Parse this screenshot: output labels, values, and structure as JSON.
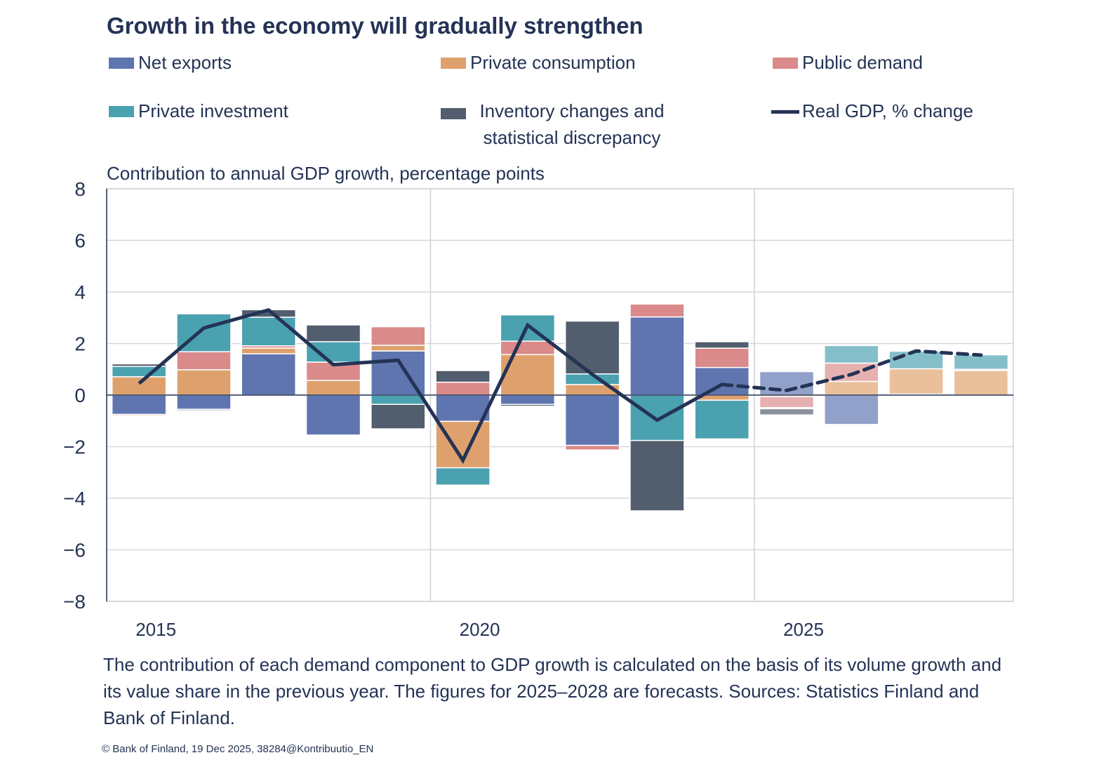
{
  "title": "Growth in the economy will gradually strengthen",
  "legend": [
    {
      "label": "Net exports",
      "color": "#5f75b0",
      "kind": "bar"
    },
    {
      "label": "Private consumption",
      "color": "#dea16d",
      "kind": "bar"
    },
    {
      "label": "Public demand",
      "color": "#da8a8a",
      "kind": "bar"
    },
    {
      "label": "Private investment",
      "color": "#4aa1b0",
      "kind": "bar"
    },
    {
      "label": "Inventory changes and statistical discrepancy",
      "color": "#525d6d",
      "kind": "bar"
    },
    {
      "label": "Real GDP, % change",
      "color": "#243355",
      "kind": "line"
    }
  ],
  "note": "The contribution of each demand component to GDP growth is calculated on the basis of its volume growth and its value share in the previous year. The figures for 2025–2028 are forecasts. Sources: Statistics Finland and Bank of Finland.",
  "copyright": "© Bank of Finland, 19 Dec 2025, 38284@Kontribuutio_EN",
  "chart_data": {
    "type": "bar",
    "stacked": true,
    "title": "Growth in the economy will gradually strengthen",
    "ylabel": "Contribution to annual GDP growth, percentage points",
    "ylim": [
      -8,
      8
    ],
    "yticks": [
      "8",
      "6",
      "4",
      "2",
      "0",
      "−2",
      "−4",
      "−6",
      "−8"
    ],
    "xtick_labels": [
      "2015",
      "2020",
      "2025"
    ],
    "grid": true,
    "legend_position": "top",
    "forecast_from": "2025",
    "categories": [
      "2015",
      "2016",
      "2017",
      "2018",
      "2019",
      "2020",
      "2021",
      "2022",
      "2023",
      "2024",
      "2025",
      "2026",
      "2027",
      "2028"
    ],
    "series": [
      {
        "name": "Net exports",
        "type": "bar",
        "color": "#5f75b0",
        "values": [
          -0.75,
          -0.55,
          1.6,
          -1.55,
          1.71,
          -1.02,
          -0.36,
          -1.95,
          3.03,
          1.07,
          0.91,
          -1.14,
          0.04,
          0.0
        ]
      },
      {
        "name": "Private consumption",
        "type": "bar",
        "color": "#dea16d",
        "values": [
          0.71,
          0.98,
          0.22,
          0.57,
          0.22,
          -1.8,
          1.57,
          0.41,
          0.0,
          -0.2,
          -0.06,
          0.53,
          0.98,
          0.95
        ]
      },
      {
        "name": "Public demand",
        "type": "bar",
        "color": "#da8a8a",
        "values": [
          -0.05,
          0.7,
          0.09,
          0.71,
          0.72,
          0.5,
          0.52,
          -0.18,
          0.5,
          0.75,
          -0.43,
          0.71,
          0.0,
          0.05
        ]
      },
      {
        "name": "Private investment",
        "type": "bar",
        "color": "#4aa1b0",
        "values": [
          0.4,
          1.47,
          1.11,
          0.79,
          -0.36,
          -0.67,
          1.02,
          0.41,
          -1.76,
          -1.5,
          -0.04,
          0.68,
          0.68,
          0.56
        ]
      },
      {
        "name": "Inventory changes and statistical discrepancy",
        "type": "bar",
        "color": "#525d6d",
        "values": [
          0.1,
          -0.05,
          0.29,
          0.65,
          -0.95,
          0.45,
          -0.07,
          2.05,
          -2.73,
          0.25,
          -0.24,
          0.0,
          0.0,
          0.0
        ]
      },
      {
        "name": "Real GDP, % change",
        "type": "line",
        "color": "#243355",
        "values": [
          0.45,
          2.6,
          3.3,
          1.18,
          1.35,
          -2.53,
          2.71,
          0.8,
          -0.97,
          0.41,
          0.18,
          0.8,
          1.71,
          1.55
        ]
      }
    ]
  }
}
